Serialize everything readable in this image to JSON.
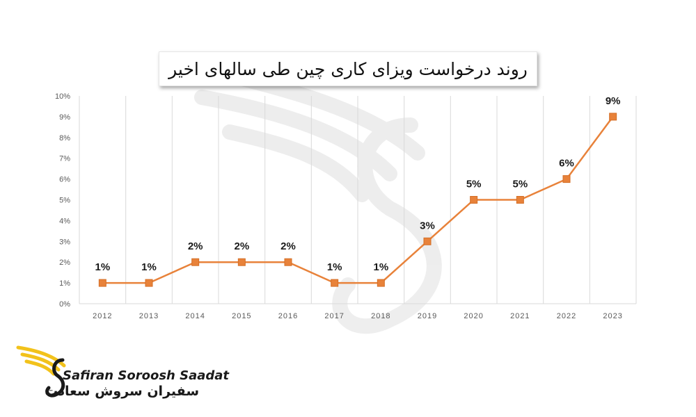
{
  "chart_data": {
    "type": "line",
    "title": "روند درخواست ویزای کاری چین طی سالهای اخیر",
    "categories": [
      "2012",
      "2013",
      "2014",
      "2015",
      "2016",
      "2017",
      "2018",
      "2019",
      "2020",
      "2021",
      "2022",
      "2023"
    ],
    "series": [
      {
        "values": [
          1,
          1,
          2,
          2,
          2,
          1,
          1,
          3,
          5,
          5,
          6,
          9
        ],
        "data_labels": [
          "1%",
          "1%",
          "2%",
          "2%",
          "2%",
          "1%",
          "1%",
          "3%",
          "5%",
          "5%",
          "6%",
          "9%"
        ]
      }
    ],
    "ylim": [
      0,
      10
    ],
    "yticks": [
      0,
      1,
      2,
      3,
      4,
      5,
      6,
      7,
      8,
      9,
      10
    ],
    "ytick_labels": [
      "0%",
      "1%",
      "2%",
      "3%",
      "4%",
      "5%",
      "6%",
      "7%",
      "8%",
      "9%",
      "10%"
    ],
    "grid": "vertical",
    "legend": "none",
    "line_color": "#e8823a",
    "marker": "square"
  },
  "brand": {
    "name_en": "Safiran Soroosh Saadat",
    "name_fa": "سفیران سروش سعادت",
    "logo_icon": "winged-s-logo-icon",
    "accent_color": "#f2c21b"
  }
}
